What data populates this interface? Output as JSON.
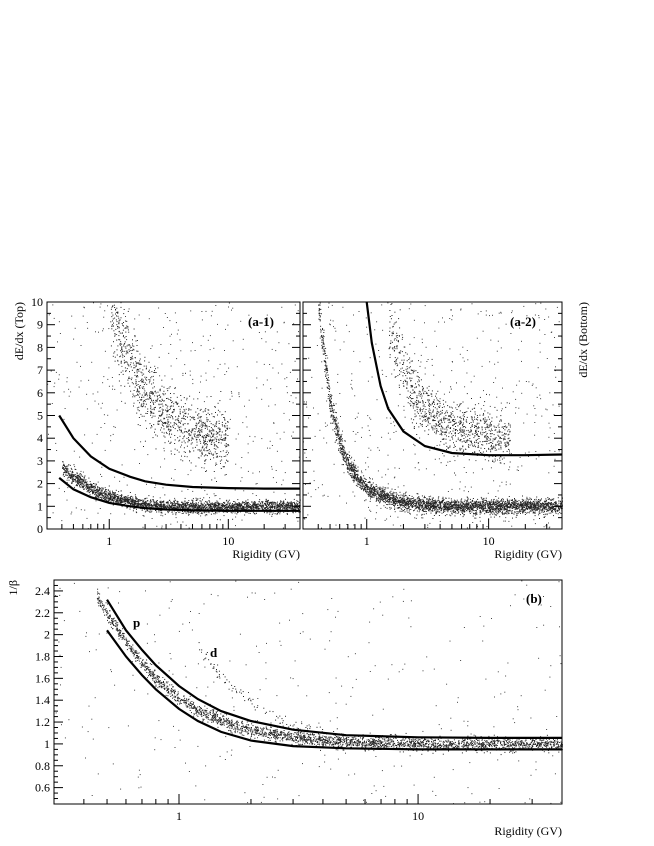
{
  "chart_data": [
    {
      "id": "a-1",
      "type": "scatter",
      "panel_label": "(a-1)",
      "xlabel": "Rigidity (GV)",
      "ylabel": "dE/dx (Top)",
      "xscale": "log",
      "xlim": [
        0.3,
        40
      ],
      "ylim": [
        0,
        10
      ],
      "x_tick_labels": [
        "1",
        "10"
      ],
      "y_tick_labels": [
        "0",
        "1",
        "2",
        "3",
        "4",
        "5",
        "6",
        "7",
        "8",
        "9",
        "10"
      ],
      "series": [
        {
          "band": "proton",
          "x": [
            0.4,
            0.5,
            0.7,
            1,
            1.5,
            2,
            3,
            5,
            10,
            20,
            40
          ],
          "y": [
            2.7,
            2.3,
            1.8,
            1.45,
            1.2,
            1.1,
            1.02,
            0.98,
            0.98,
            1.0,
            1.02
          ],
          "spread": 0.18,
          "count": 2600
        },
        {
          "band": "helium",
          "x": [
            1,
            1.2,
            1.5,
            2,
            3,
            4,
            5,
            7,
            10
          ],
          "y": [
            10,
            8.5,
            7.2,
            6.0,
            5.0,
            4.6,
            4.3,
            4.1,
            4.0
          ],
          "spread": 0.55,
          "count": 1100
        }
      ],
      "cut_curves": [
        {
          "x": [
            0.38,
            0.5,
            0.7,
            1,
            1.5,
            2,
            3,
            5,
            10,
            20,
            40
          ],
          "y": [
            5.0,
            4.0,
            3.2,
            2.65,
            2.3,
            2.1,
            1.95,
            1.85,
            1.8,
            1.78,
            1.78
          ]
        },
        {
          "x": [
            0.38,
            0.5,
            0.7,
            1,
            1.5,
            2,
            3,
            5,
            10,
            20,
            40
          ],
          "y": [
            2.25,
            1.75,
            1.4,
            1.15,
            1.0,
            0.92,
            0.86,
            0.82,
            0.8,
            0.8,
            0.8
          ]
        }
      ]
    },
    {
      "id": "a-2",
      "type": "scatter",
      "panel_label": "(a-2)",
      "xlabel": "Rigidity (GV)",
      "ylabel": "dE/dx (Bottom)",
      "xscale": "log",
      "xlim": [
        0.3,
        40
      ],
      "ylim": [
        0,
        10
      ],
      "x_tick_labels": [
        "1",
        "10"
      ],
      "series": [
        {
          "band": "proton",
          "x": [
            0.4,
            0.45,
            0.5,
            0.6,
            0.7,
            0.85,
            1,
            1.5,
            2,
            3,
            5,
            10,
            20,
            40
          ],
          "y": [
            10,
            7.5,
            5.5,
            3.8,
            2.9,
            2.2,
            1.8,
            1.35,
            1.2,
            1.08,
            1.02,
            1.0,
            1.0,
            1.02
          ],
          "spread": 0.22,
          "count": 3200
        },
        {
          "band": "helium",
          "x": [
            1.5,
            1.7,
            2,
            2.5,
            3,
            4,
            5,
            7,
            10,
            15
          ],
          "y": [
            10,
            8.3,
            7.0,
            5.9,
            5.3,
            4.8,
            4.5,
            4.3,
            4.1,
            4.0
          ],
          "spread": 0.5,
          "count": 1000
        }
      ],
      "cut_curves": [
        {
          "x": [
            1,
            1.1,
            1.3,
            1.5,
            2,
            3,
            5,
            10,
            20,
            40
          ],
          "y": [
            10,
            8.2,
            6.3,
            5.3,
            4.3,
            3.65,
            3.35,
            3.25,
            3.25,
            3.28
          ]
        }
      ]
    },
    {
      "id": "b",
      "type": "scatter",
      "panel_label": "(b)",
      "xlabel": "Rigidity (GV)",
      "ylabel": "1/β",
      "xscale": "log",
      "xlim": [
        0.3,
        40
      ],
      "ylim": [
        0.45,
        2.5
      ],
      "x_tick_labels": [
        "1",
        "10"
      ],
      "y_tick_labels": [
        "0.6",
        "0.8",
        "1",
        "1.2",
        "1.4",
        "1.6",
        "1.8",
        "2",
        "2.2",
        "2.4"
      ],
      "annotations": [
        "p",
        "d"
      ],
      "series": [
        {
          "band": "proton",
          "x": [
            0.45,
            0.5,
            0.6,
            0.7,
            0.8,
            1,
            1.2,
            1.5,
            2,
            3,
            5,
            10,
            20,
            40
          ],
          "y": [
            2.35,
            2.2,
            1.93,
            1.74,
            1.6,
            1.42,
            1.31,
            1.21,
            1.13,
            1.06,
            1.02,
            1.0,
            1.0,
            1.0
          ],
          "spread": 0.03,
          "count": 2600
        },
        {
          "band": "deuteron",
          "x": [
            1.2,
            1.4,
            1.7,
            2,
            2.5,
            3,
            4,
            5,
            7,
            10
          ],
          "y": [
            1.9,
            1.7,
            1.5,
            1.38,
            1.25,
            1.17,
            1.1,
            1.06,
            1.03,
            1.01
          ],
          "spread": 0.03,
          "count": 160
        }
      ],
      "cut_curves": [
        {
          "x": [
            0.5,
            0.6,
            0.7,
            0.8,
            1,
            1.2,
            1.5,
            2,
            3,
            5,
            10,
            20,
            40
          ],
          "y": [
            2.32,
            2.04,
            1.86,
            1.72,
            1.53,
            1.41,
            1.3,
            1.21,
            1.13,
            1.08,
            1.06,
            1.055,
            1.055
          ]
        },
        {
          "x": [
            0.5,
            0.6,
            0.7,
            0.8,
            1,
            1.2,
            1.5,
            2,
            3,
            5,
            10,
            20,
            40
          ],
          "y": [
            2.04,
            1.8,
            1.63,
            1.5,
            1.32,
            1.21,
            1.11,
            1.03,
            0.98,
            0.96,
            0.95,
            0.95,
            0.95
          ]
        }
      ]
    }
  ]
}
